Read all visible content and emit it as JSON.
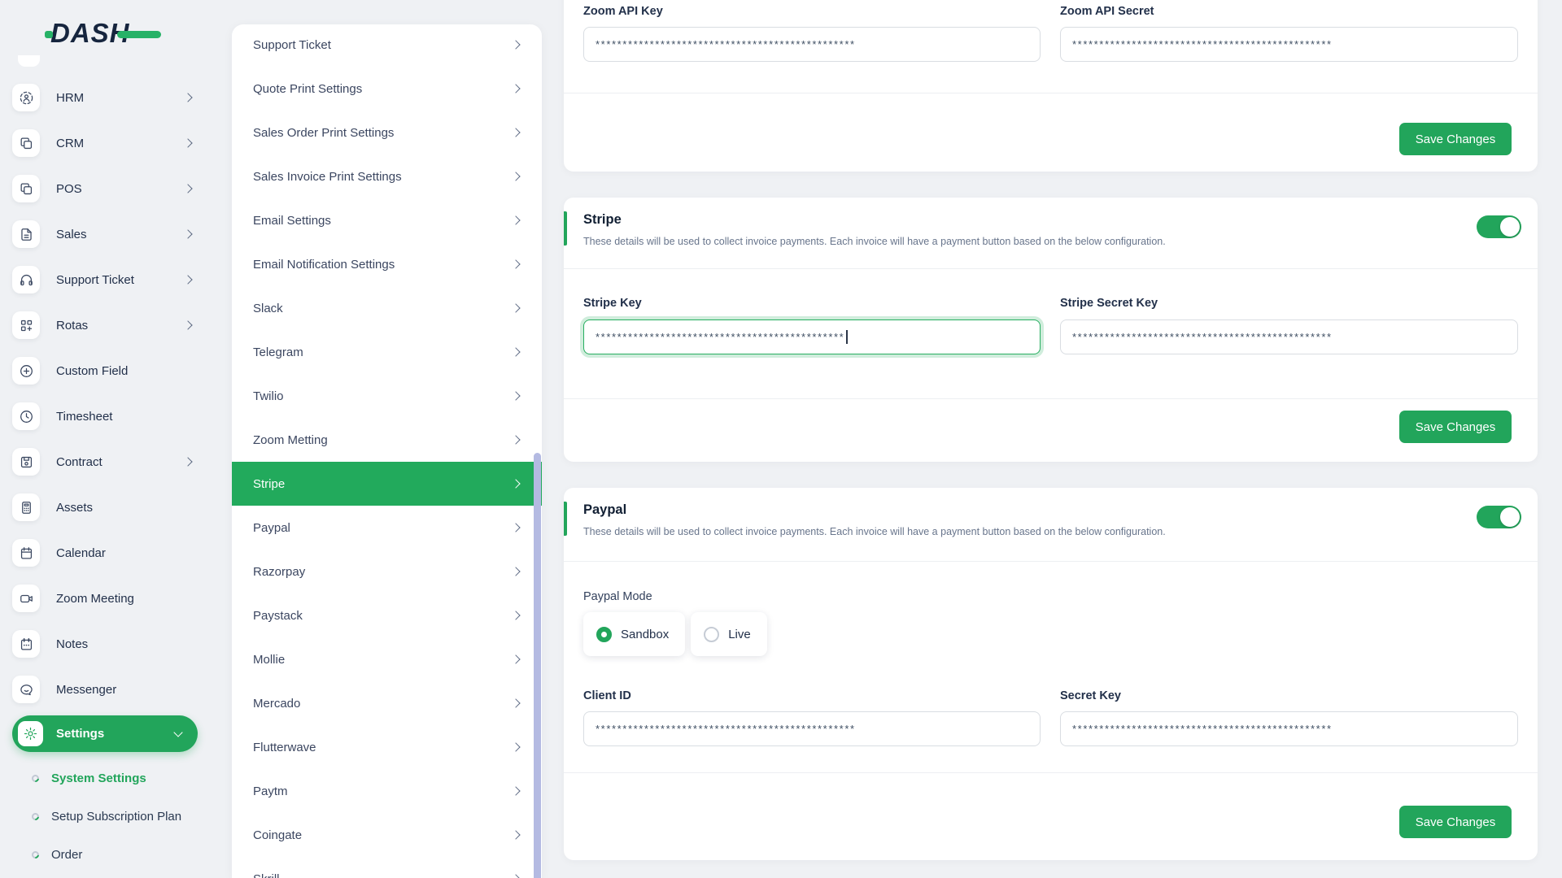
{
  "theme": {
    "green": "#22a55b",
    "navy": "#16253e",
    "page_bg": "#eff1f4",
    "scrollbar": "#b4bae2"
  },
  "brand": {
    "name": "DASH"
  },
  "sidebar": {
    "items": [
      {
        "label": "HRM",
        "icon": "hrm-icon",
        "has_chevron": true
      },
      {
        "label": "CRM",
        "icon": "crm-icon",
        "has_chevron": true
      },
      {
        "label": "POS",
        "icon": "pos-icon",
        "has_chevron": true
      },
      {
        "label": "Sales",
        "icon": "sales-icon",
        "has_chevron": true
      },
      {
        "label": "Support Ticket",
        "icon": "support-ticket-icon",
        "has_chevron": true
      },
      {
        "label": "Rotas",
        "icon": "rotas-icon",
        "has_chevron": true
      },
      {
        "label": "Custom Field",
        "icon": "custom-field-icon",
        "has_chevron": false
      },
      {
        "label": "Timesheet",
        "icon": "timesheet-icon",
        "has_chevron": false
      },
      {
        "label": "Contract",
        "icon": "contract-icon",
        "has_chevron": true
      },
      {
        "label": "Assets",
        "icon": "assets-icon",
        "has_chevron": false
      },
      {
        "label": "Calendar",
        "icon": "calendar-icon",
        "has_chevron": false
      },
      {
        "label": "Zoom Meeting",
        "icon": "zoom-meeting-icon",
        "has_chevron": false
      },
      {
        "label": "Notes",
        "icon": "notes-icon",
        "has_chevron": false
      },
      {
        "label": "Messenger",
        "icon": "messenger-icon",
        "has_chevron": false
      }
    ],
    "settings": {
      "label": "Settings",
      "icon": "gear-icon",
      "expanded": true
    },
    "submenu": [
      {
        "label": "System Settings",
        "active": true
      },
      {
        "label": "Setup Subscription Plan",
        "active": false
      },
      {
        "label": "Order",
        "active": false
      }
    ]
  },
  "settings_panel": {
    "items": [
      {
        "label": "Support Ticket"
      },
      {
        "label": "Quote Print Settings"
      },
      {
        "label": "Sales Order Print Settings"
      },
      {
        "label": "Sales Invoice Print Settings"
      },
      {
        "label": "Email Settings"
      },
      {
        "label": "Email Notification Settings"
      },
      {
        "label": "Slack"
      },
      {
        "label": "Telegram"
      },
      {
        "label": "Twilio"
      },
      {
        "label": "Zoom Metting"
      },
      {
        "label": "Stripe",
        "active": true
      },
      {
        "label": "Paypal"
      },
      {
        "label": "Razorpay"
      },
      {
        "label": "Paystack"
      },
      {
        "label": "Mollie"
      },
      {
        "label": "Mercado"
      },
      {
        "label": "Flutterwave"
      },
      {
        "label": "Paytm"
      },
      {
        "label": "Coingate"
      },
      {
        "label": "Skrill",
        "partial": true
      }
    ]
  },
  "main": {
    "zoom_card": {
      "fields": [
        {
          "label": "Zoom API Key",
          "value": "************************************************"
        },
        {
          "label": "Zoom API Secret",
          "value": "************************************************"
        }
      ],
      "save_label": "Save Changes"
    },
    "stripe_card": {
      "title": "Stripe",
      "description": "These details will be used to collect invoice payments. Each invoice will have a payment button based on the below configuration.",
      "toggle_on": true,
      "fields": [
        {
          "label": "Stripe Key",
          "value": "**********************************************",
          "focused": true
        },
        {
          "label": "Stripe Secret Key",
          "value": "************************************************"
        }
      ],
      "save_label": "Save Changes"
    },
    "paypal_card": {
      "title": "Paypal",
      "description": "These details will be used to collect invoice payments. Each invoice will have a payment button based on the below configuration.",
      "toggle_on": true,
      "mode_label": "Paypal Mode",
      "modes": [
        {
          "label": "Sandbox",
          "selected": true
        },
        {
          "label": "Live",
          "selected": false
        }
      ],
      "fields": [
        {
          "label": "Client ID",
          "value": "************************************************"
        },
        {
          "label": "Secret Key",
          "value": "************************************************"
        }
      ],
      "save_label": "Save Changes"
    }
  }
}
